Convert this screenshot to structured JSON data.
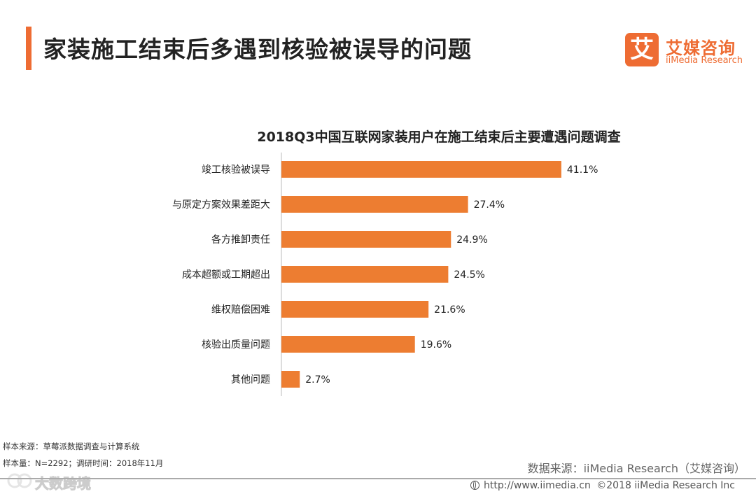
{
  "header": {
    "title": "家装施工结束后多遇到核验被误导的问题",
    "logo_mark": "艾",
    "logo_cn": "艾媒咨询",
    "logo_en": "iiMedia Research",
    "accent_color": "#ee6c33"
  },
  "chart_data": {
    "type": "bar",
    "orientation": "horizontal",
    "title": "2018Q3中国互联网家装用户在施工结束后主要遭遇问题调查",
    "categories": [
      "竣工核验被误导",
      "与原定方案效果差距大",
      "各方推卸责任",
      "成本超额或工期超出",
      "维权赔偿困难",
      "核验出质量问题",
      "其他问题"
    ],
    "values": [
      41.1,
      27.4,
      24.9,
      24.5,
      21.6,
      19.6,
      2.7
    ],
    "value_labels": [
      "41.1%",
      "27.4%",
      "24.9%",
      "24.5%",
      "21.6%",
      "19.6%",
      "2.7%"
    ],
    "unit": "%",
    "xlim": [
      0,
      50
    ],
    "bar_color": "#ed7d31",
    "grid": false,
    "legend": "none"
  },
  "footer": {
    "sample_source": "样本来源：草莓派数据调查与计算系统",
    "sample_size": "样本量：N=2292；调研时间：2018年11月",
    "data_source": "数据来源：iiMedia Research（艾媒咨询）",
    "url": "http://www.iimedia.cn",
    "copyright": "©2018  iiMedia Research  Inc",
    "watermark": "大数跨境"
  }
}
